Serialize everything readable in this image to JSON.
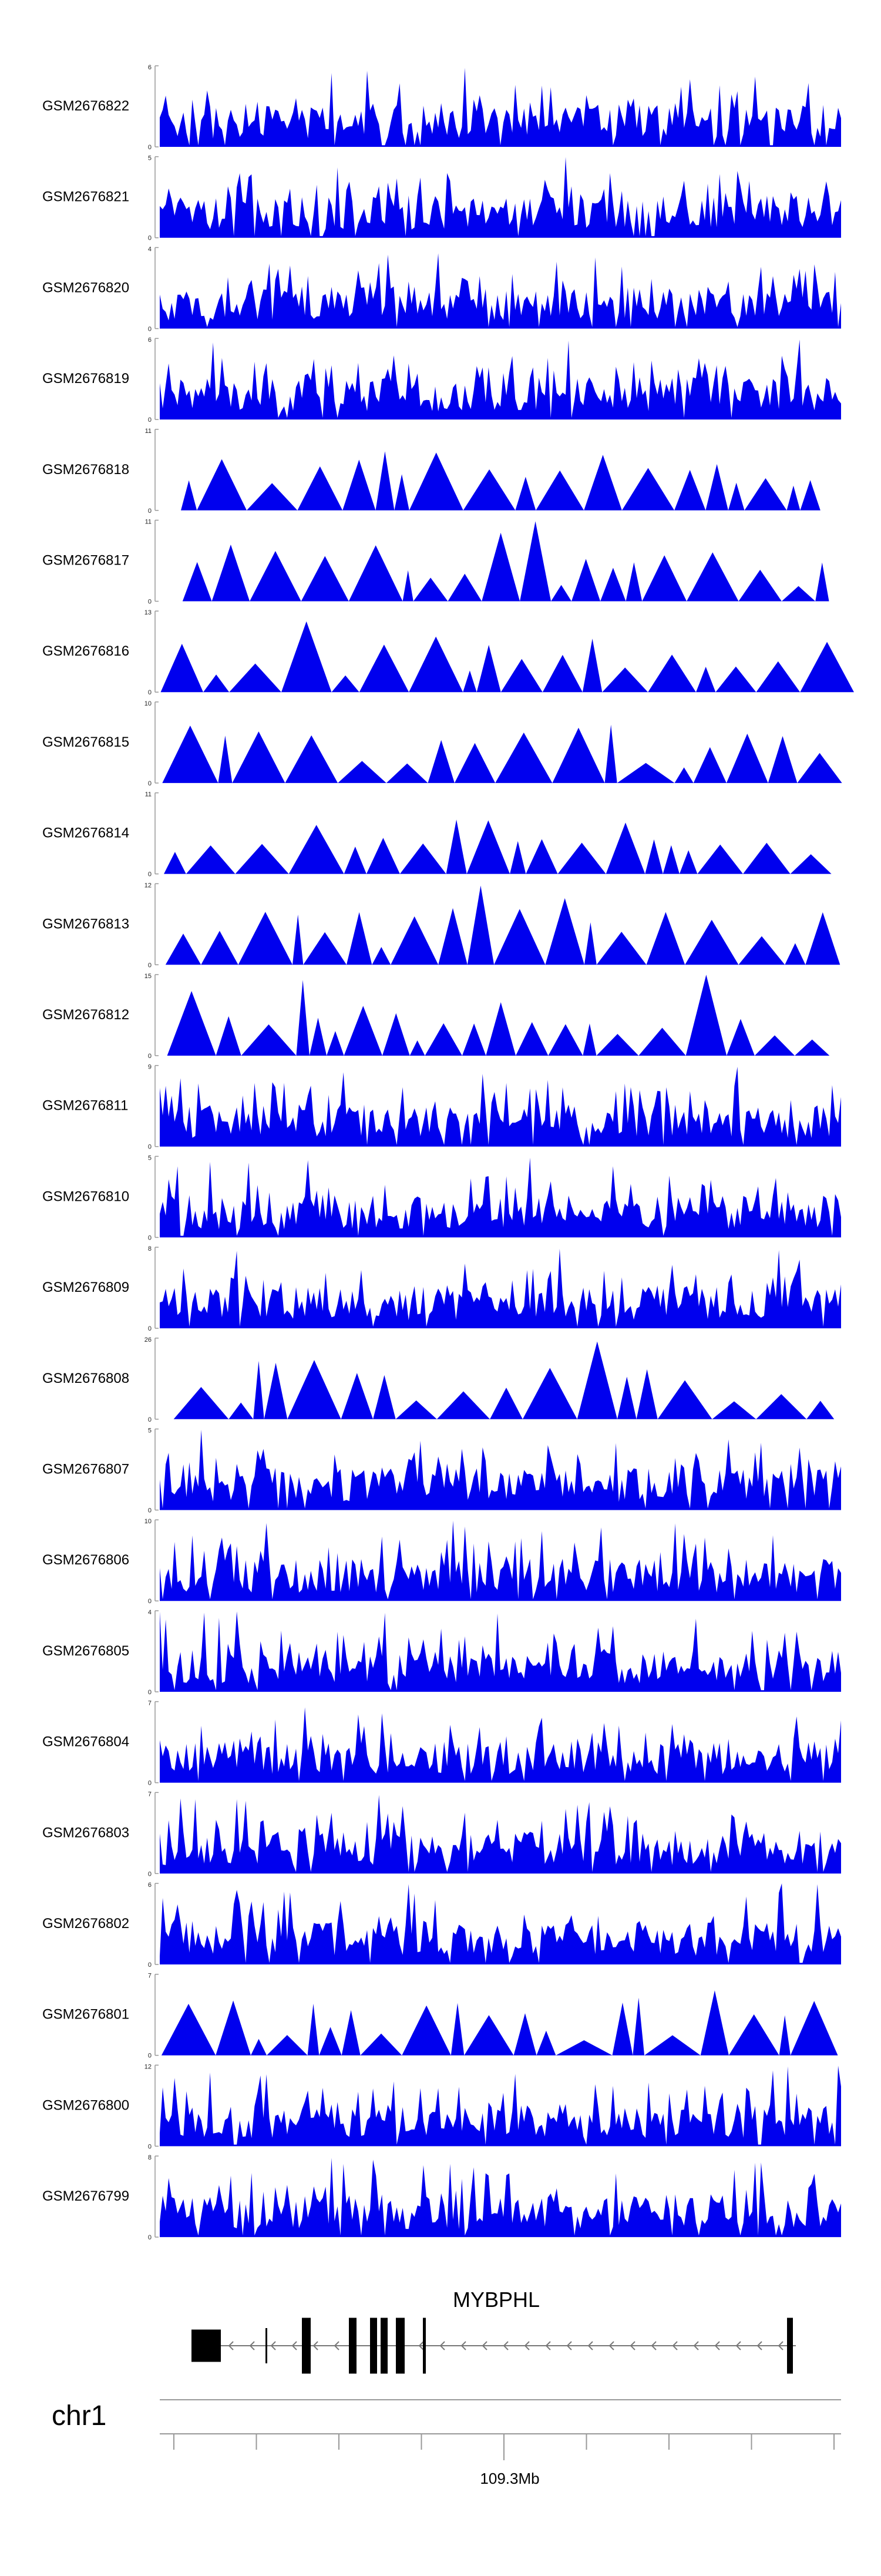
{
  "chart_data": {
    "type": "area",
    "color": "#0000ee",
    "tracks": [
      {
        "name": "GSM2676822",
        "ymax": "6",
        "ymin": "0",
        "ymax_val": 6
      },
      {
        "name": "GSM2676821",
        "ymax": "5",
        "ymin": "0",
        "ymax_val": 5
      },
      {
        "name": "GSM2676820",
        "ymax": "4",
        "ymin": "0",
        "ymax_val": 4
      },
      {
        "name": "GSM2676819",
        "ymax": "6",
        "ymin": "0",
        "ymax_val": 6
      },
      {
        "name": "GSM2676818",
        "ymax": "11",
        "ymin": "0",
        "ymax_val": 11
      },
      {
        "name": "GSM2676817",
        "ymax": "11",
        "ymin": "0",
        "ymax_val": 11
      },
      {
        "name": "GSM2676816",
        "ymax": "13",
        "ymin": "0",
        "ymax_val": 13
      },
      {
        "name": "GSM2676815",
        "ymax": "10",
        "ymin": "0",
        "ymax_val": 10
      },
      {
        "name": "GSM2676814",
        "ymax": "11",
        "ymin": "0",
        "ymax_val": 11
      },
      {
        "name": "GSM2676813",
        "ymax": "12",
        "ymin": "0",
        "ymax_val": 12
      },
      {
        "name": "GSM2676812",
        "ymax": "15",
        "ymin": "0",
        "ymax_val": 15
      },
      {
        "name": "GSM2676811",
        "ymax": "9",
        "ymin": "0",
        "ymax_val": 9
      },
      {
        "name": "GSM2676810",
        "ymax": "5",
        "ymin": "0",
        "ymax_val": 5
      },
      {
        "name": "GSM2676809",
        "ymax": "8",
        "ymin": "0",
        "ymax_val": 8
      },
      {
        "name": "GSM2676808",
        "ymax": "26",
        "ymin": "0",
        "ymax_val": 26
      },
      {
        "name": "GSM2676807",
        "ymax": "5",
        "ymin": "0",
        "ymax_val": 5
      },
      {
        "name": "GSM2676806",
        "ymax": "10",
        "ymin": "0",
        "ymax_val": 10
      },
      {
        "name": "GSM2676805",
        "ymax": "4",
        "ymin": "0",
        "ymax_val": 4
      },
      {
        "name": "GSM2676804",
        "ymax": "7",
        "ymin": "0",
        "ymax_val": 7
      },
      {
        "name": "GSM2676803",
        "ymax": "7",
        "ymin": "0",
        "ymax_val": 7
      },
      {
        "name": "GSM2676802",
        "ymax": "6",
        "ymin": "0",
        "ymax_val": 6
      },
      {
        "name": "GSM2676801",
        "ymax": "7",
        "ymin": "0",
        "ymax_val": 7
      },
      {
        "name": "GSM2676800",
        "ymax": "12",
        "ymin": "0",
        "ymax_val": 12
      },
      {
        "name": "GSM2676799",
        "ymax": "8",
        "ymin": "0",
        "ymax_val": 8
      }
    ],
    "gene": {
      "name": "MYBPHL",
      "strand": "-"
    },
    "chromosome": "chr1",
    "axis_label": "109.3Mb"
  }
}
